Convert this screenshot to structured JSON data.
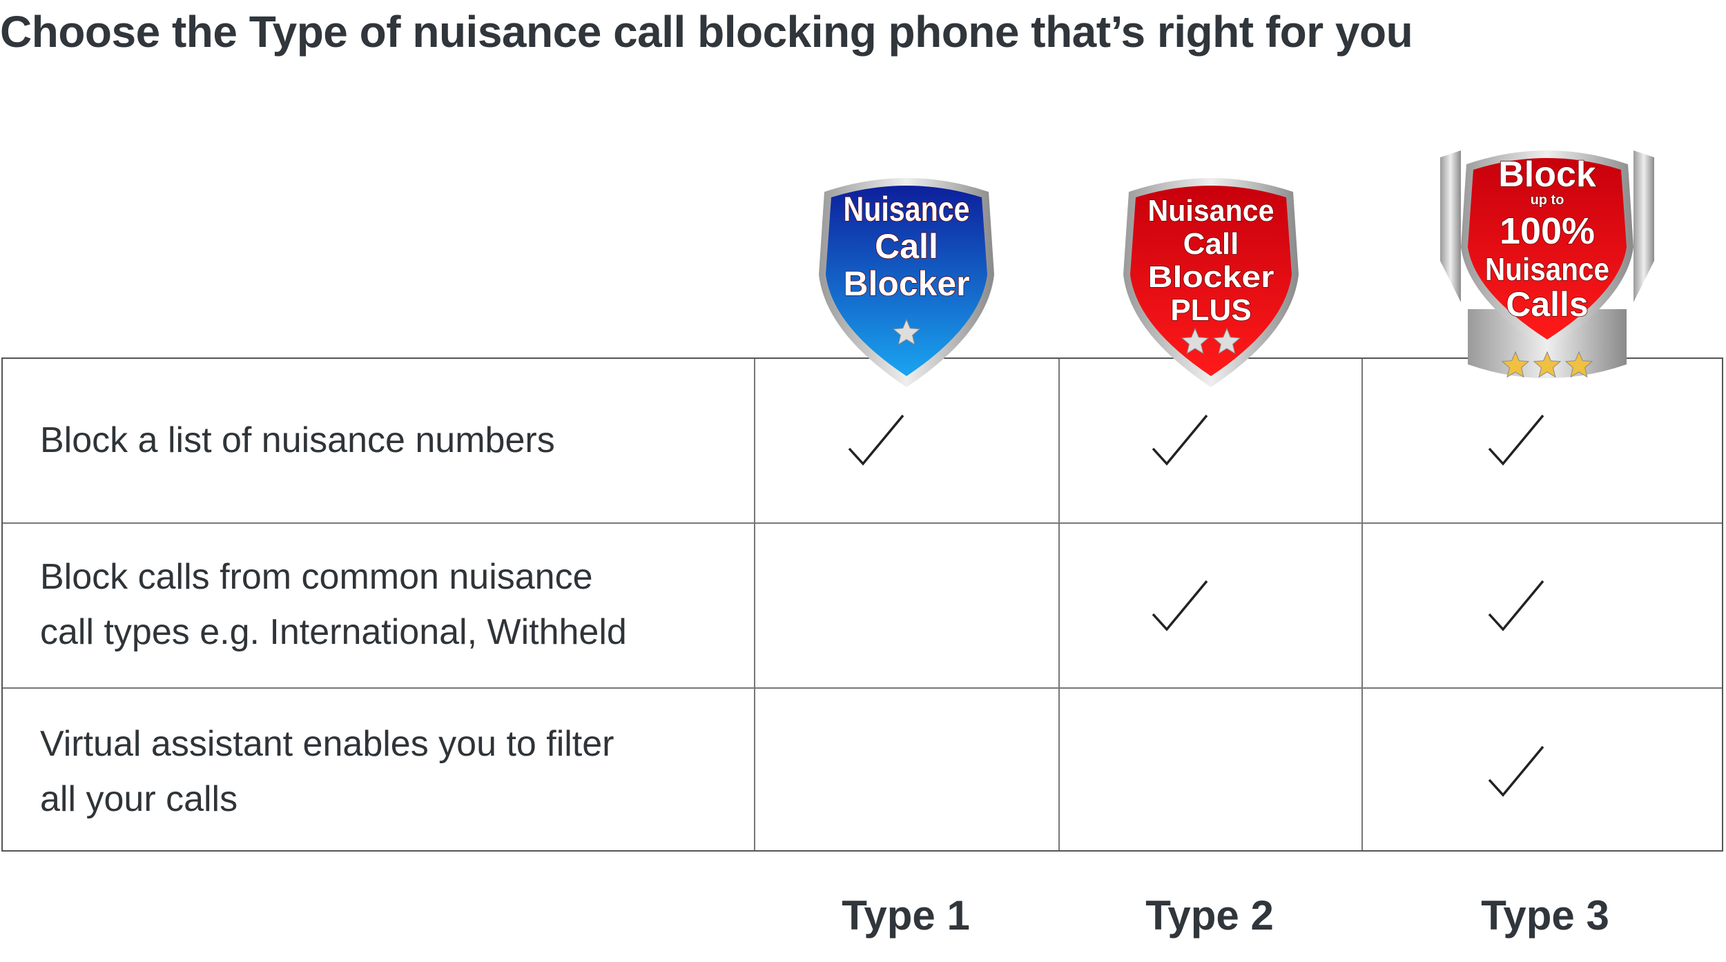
{
  "title": "Choose the Type of nuisance call blocking phone that’s right for you",
  "badges": [
    {
      "lines": [
        "Nuisance",
        "Call",
        "Blocker"
      ],
      "stars": 1,
      "color": "#1a3fb0"
    },
    {
      "lines": [
        "Nuisance",
        "Call",
        "Blocker",
        "PLUS"
      ],
      "stars": 2,
      "color": "#e0141e"
    },
    {
      "lines": [
        "Block",
        "up to",
        "100%",
        "Nuisance",
        "Calls"
      ],
      "stars": 3,
      "color": "#e0141e"
    }
  ],
  "features": [
    {
      "label": [
        "Block a list of nuisance numbers"
      ],
      "type1": true,
      "type2": true,
      "type3": true
    },
    {
      "label": [
        "Block calls from common nuisance",
        "call types e.g. International, Withheld"
      ],
      "type1": false,
      "type2": true,
      "type3": true
    },
    {
      "label": [
        "Virtual assistant enables you to filter",
        "all your calls"
      ],
      "type1": false,
      "type2": false,
      "type3": true
    }
  ],
  "types": [
    "Type 1",
    "Type 2",
    "Type 3"
  ]
}
